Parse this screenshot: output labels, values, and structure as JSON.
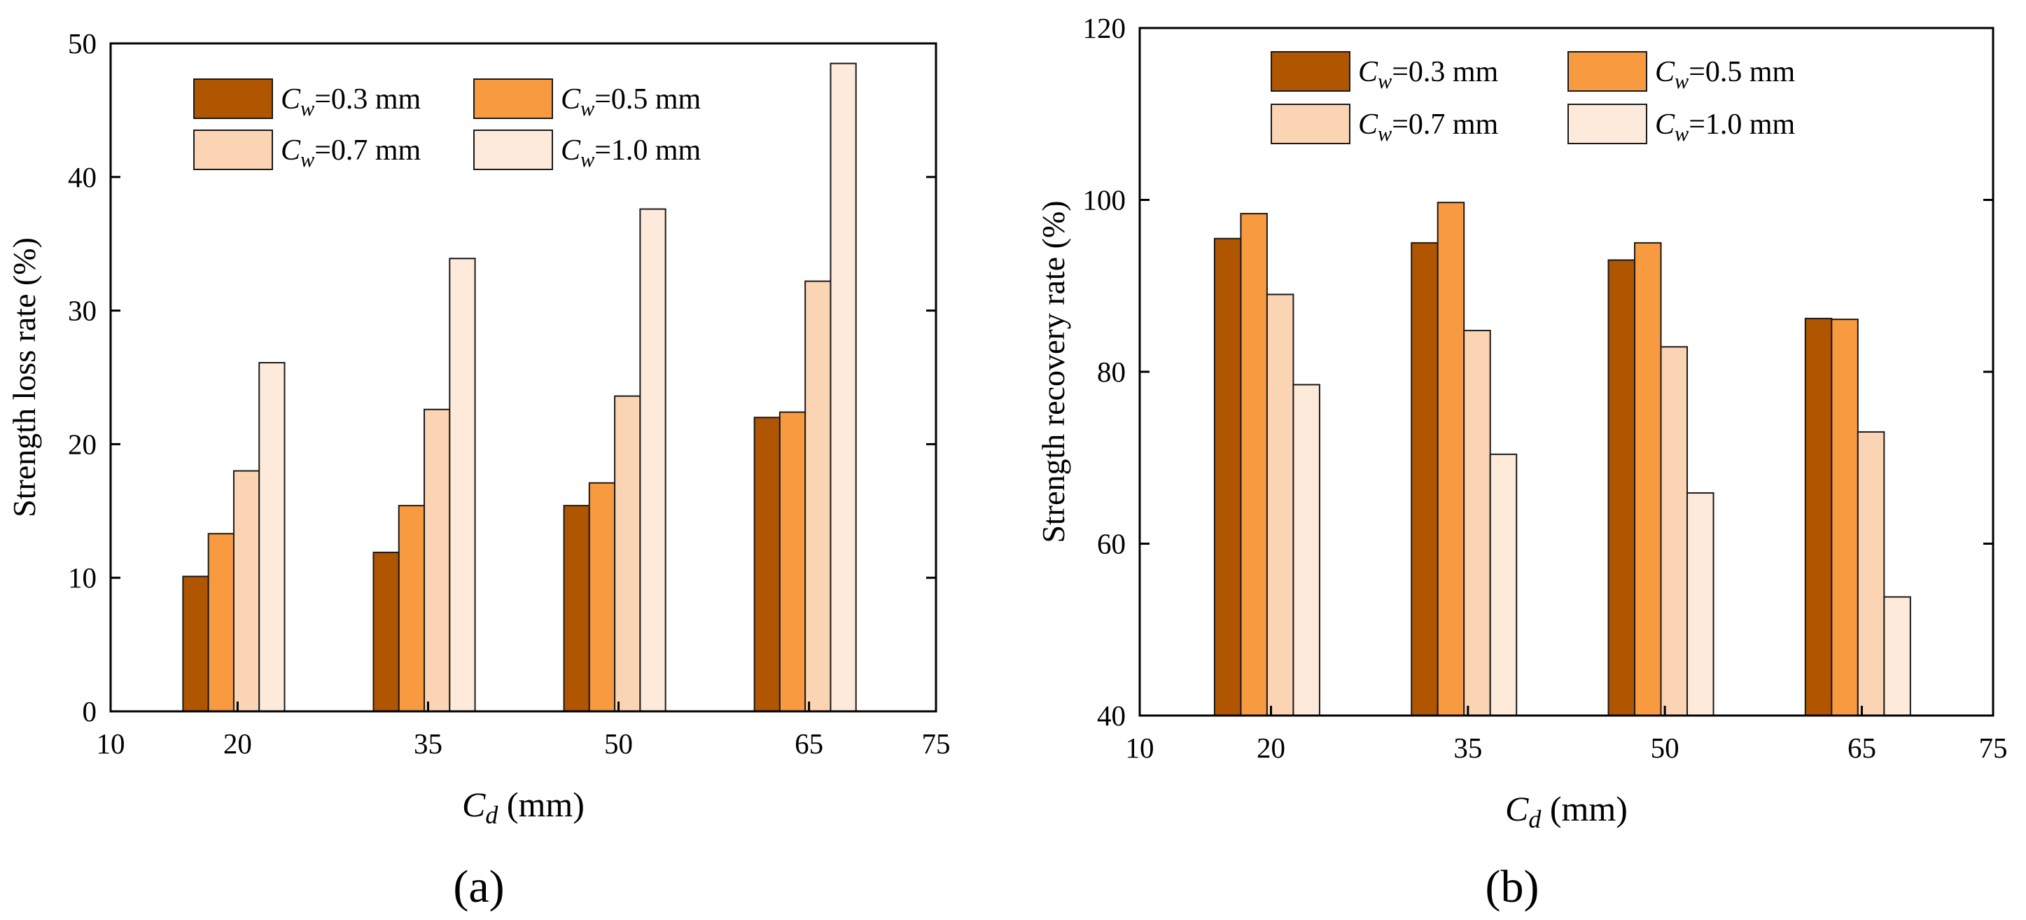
{
  "colors": {
    "Cw=0.3 mm": "#B05500",
    "Cw=0.5 mm": "#F79A40",
    "Cw=0.7 mm": "#FBD4B4",
    "Cw=1.0 mm": "#FDEADA"
  },
  "chart_data": [
    {
      "type": "bar",
      "panel_label": "(a)",
      "ylabel": "Strength loss rate (%)",
      "xlabel": {
        "sym": "C",
        "sub": "d",
        "rest": " (mm)"
      },
      "xlim": [
        10,
        75
      ],
      "xticks": [
        "10",
        "20",
        "35",
        "50",
        "65",
        "75"
      ],
      "ylim": [
        0,
        50
      ],
      "yticks": [
        "0",
        "10",
        "20",
        "30",
        "40",
        "50"
      ],
      "categories": [
        "20",
        "35",
        "50",
        "65"
      ],
      "legend_position": "top-left",
      "series": [
        {
          "name": "Cw=0.3 mm",
          "legend": {
            "sym": "C",
            "sub": "w",
            "rest": "=0.3 mm"
          },
          "values": [
            10.1,
            11.9,
            15.4,
            22.0
          ]
        },
        {
          "name": "Cw=0.5 mm",
          "legend": {
            "sym": "C",
            "sub": "w",
            "rest": "=0.5 mm"
          },
          "values": [
            13.3,
            15.4,
            17.1,
            22.4
          ]
        },
        {
          "name": "Cw=0.7 mm",
          "legend": {
            "sym": "C",
            "sub": "w",
            "rest": "=0.7 mm"
          },
          "values": [
            18.0,
            22.6,
            23.6,
            32.2
          ]
        },
        {
          "name": "Cw=1.0 mm",
          "legend": {
            "sym": "C",
            "sub": "w",
            "rest": "=1.0 mm"
          },
          "values": [
            26.1,
            33.9,
            37.6,
            48.5
          ]
        }
      ]
    },
    {
      "type": "bar",
      "panel_label": "(b)",
      "ylabel": "Strength recovery rate (%)",
      "xlabel": {
        "sym": "C",
        "sub": "d",
        "rest": " (mm)"
      },
      "xlim": [
        10,
        75
      ],
      "xticks": [
        "10",
        "20",
        "35",
        "50",
        "65",
        "75"
      ],
      "ylim": [
        40,
        120
      ],
      "yticks": [
        "40",
        "60",
        "80",
        "100",
        "120"
      ],
      "categories": [
        "20",
        "35",
        "50",
        "65"
      ],
      "legend_position": "top-center",
      "series": [
        {
          "name": "Cw=0.3 mm",
          "legend": {
            "sym": "C",
            "sub": "w",
            "rest": "=0.3 mm"
          },
          "values": [
            95.5,
            95.0,
            93.0,
            86.2
          ]
        },
        {
          "name": "Cw=0.5 mm",
          "legend": {
            "sym": "C",
            "sub": "w",
            "rest": "=0.5 mm"
          },
          "values": [
            98.4,
            99.7,
            95.0,
            86.1
          ]
        },
        {
          "name": "Cw=0.7 mm",
          "legend": {
            "sym": "C",
            "sub": "w",
            "rest": "=0.7 mm"
          },
          "values": [
            89.0,
            84.8,
            82.9,
            73.0
          ]
        },
        {
          "name": "Cw=1.0 mm",
          "legend": {
            "sym": "C",
            "sub": "w",
            "rest": "=1.0 mm"
          },
          "values": [
            78.5,
            70.4,
            65.9,
            53.8
          ]
        }
      ]
    }
  ]
}
